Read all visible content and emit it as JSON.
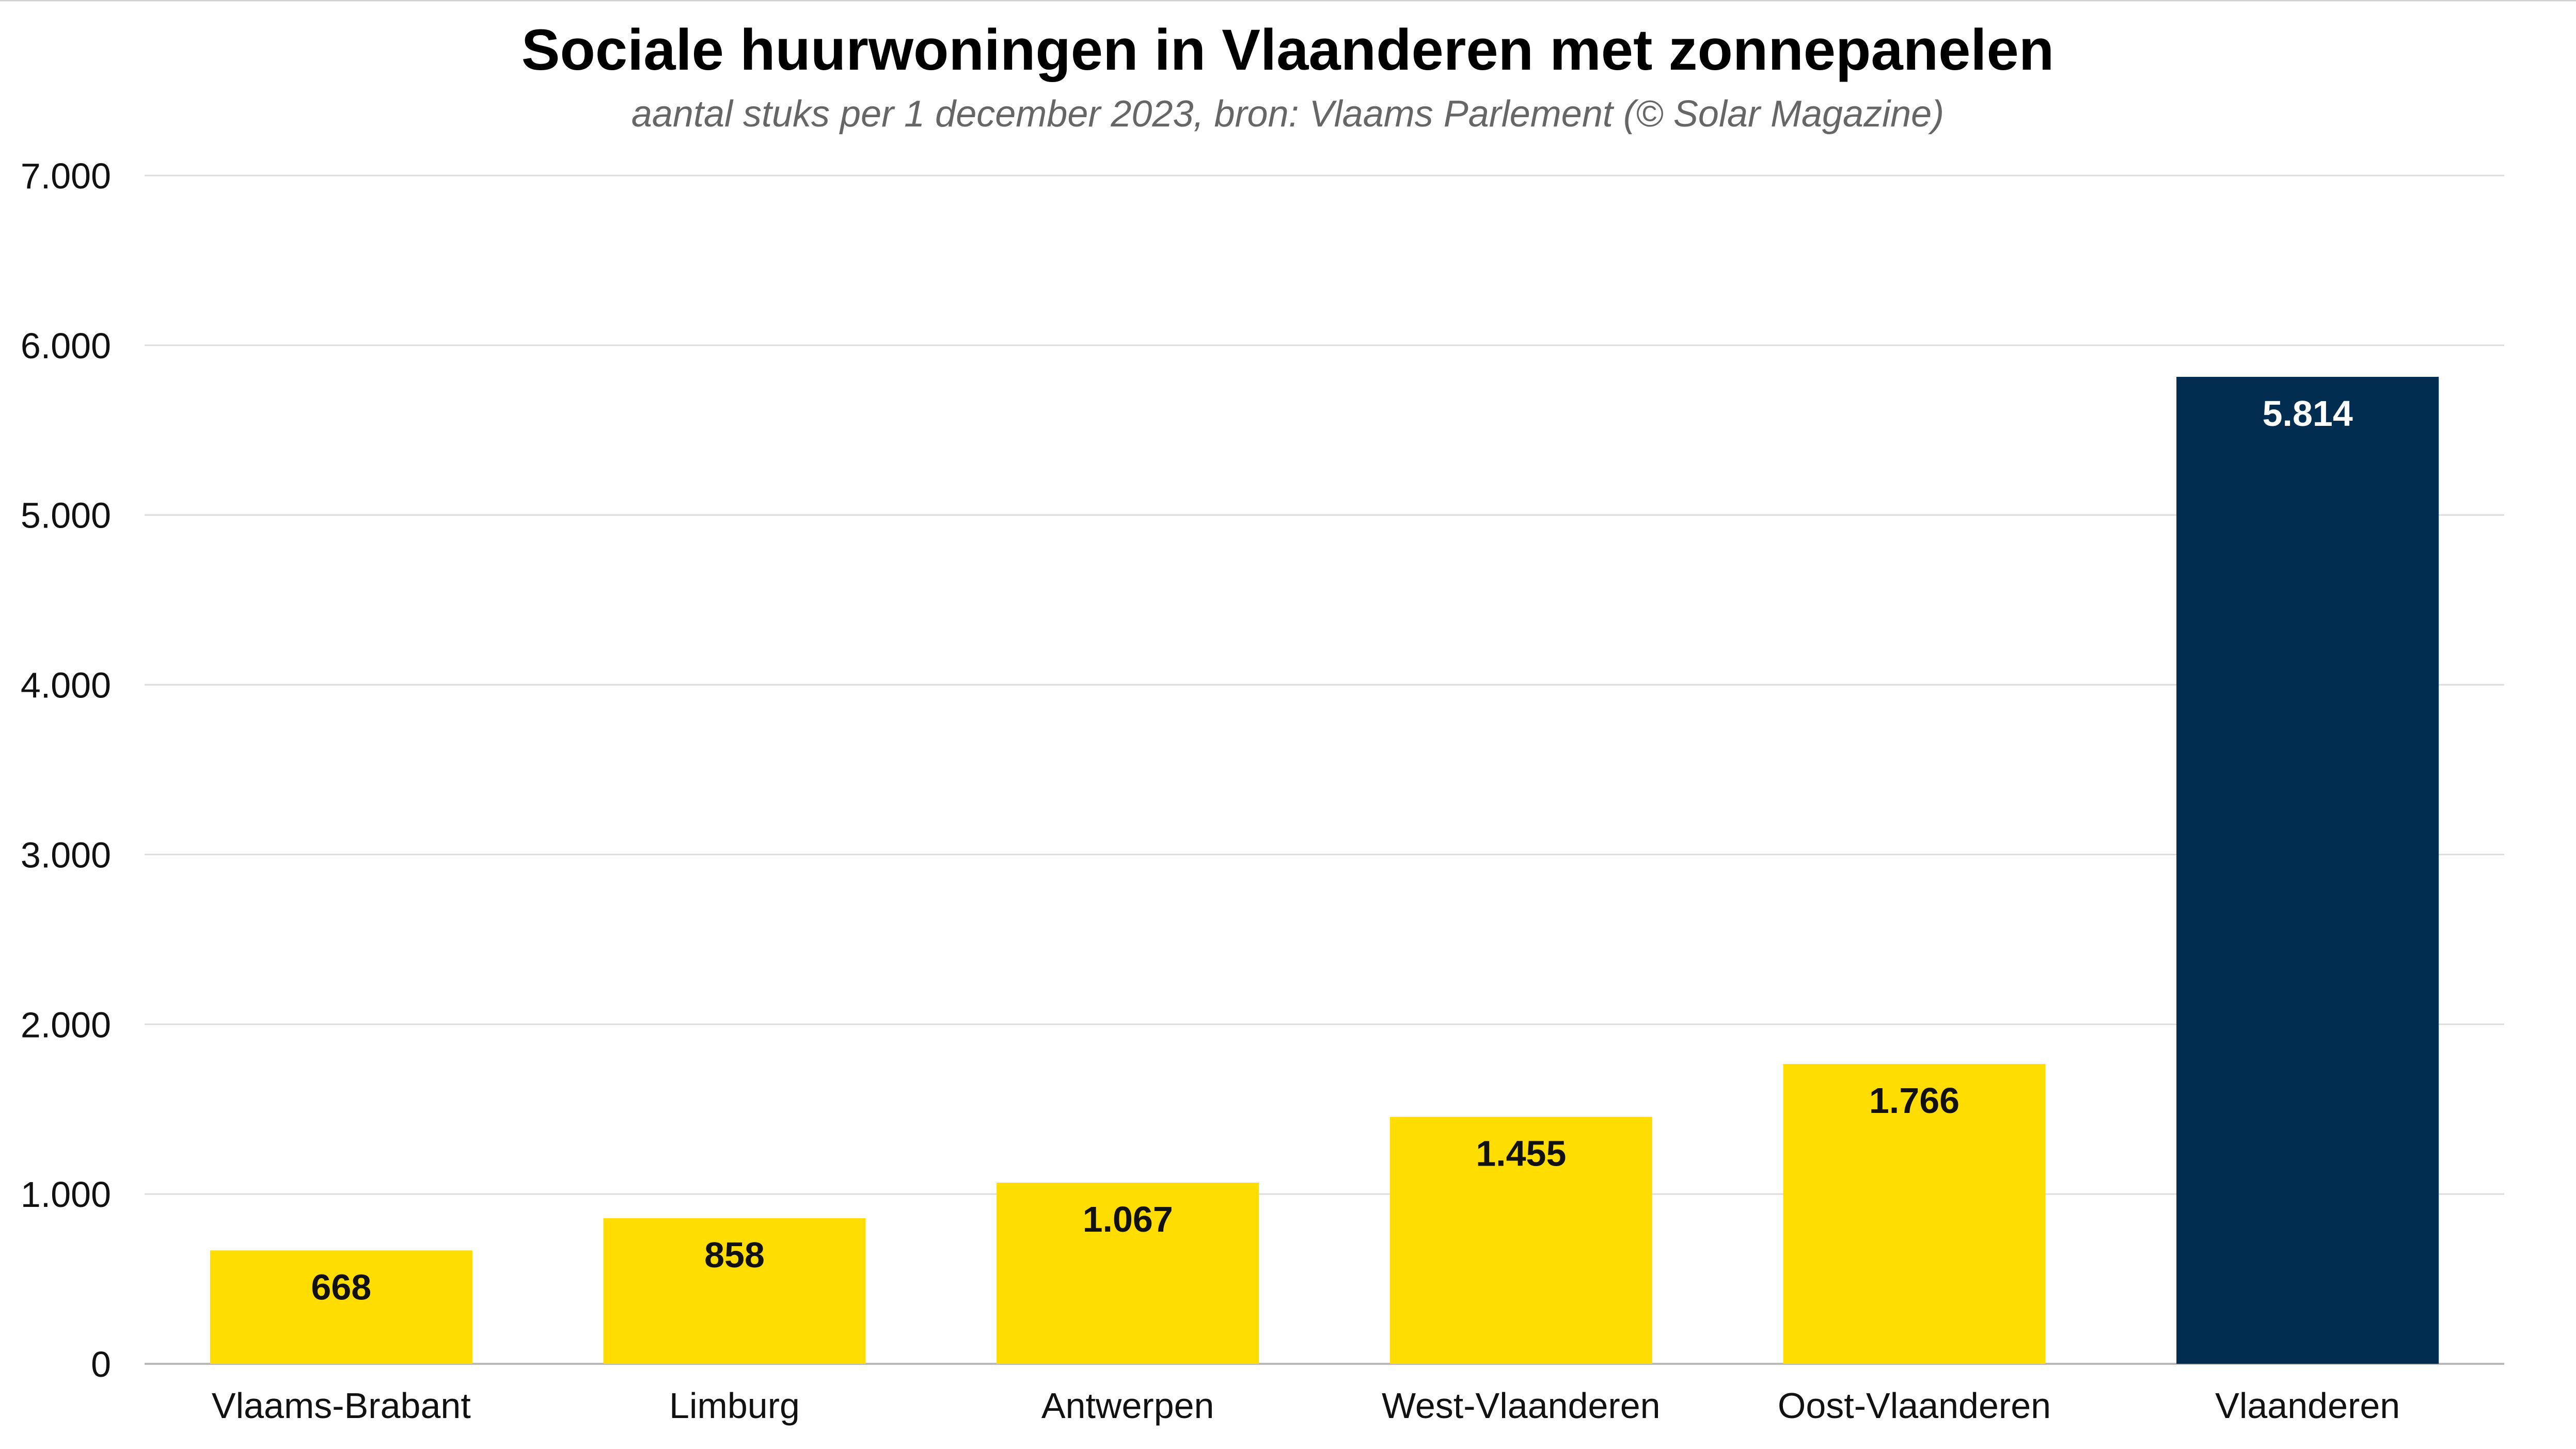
{
  "chart_data": {
    "type": "bar",
    "title": "Sociale huurwoningen in Vlaanderen met zonnepanelen",
    "subtitle": "aantal stuks per 1 december 2023, bron: Vlaams Parlement (© Solar Magazine)",
    "categories": [
      "Vlaams-Brabant",
      "Limburg",
      "Antwerpen",
      "West-Vlaanderen",
      "Oost-Vlaanderen",
      "Vlaanderen"
    ],
    "values": [
      668,
      858,
      1067,
      1455,
      1766,
      5814
    ],
    "value_labels": [
      "668",
      "858",
      "1.067",
      "1.455",
      "1.766",
      "5.814"
    ],
    "bar_colors": [
      "#FFDD00",
      "#FFDD00",
      "#FFDD00",
      "#FFDD00",
      "#FFDD00",
      "#002D50"
    ],
    "label_colors": [
      "#111111",
      "#111111",
      "#111111",
      "#111111",
      "#111111",
      "#FFFFFF"
    ],
    "ylim": [
      0,
      7000
    ],
    "yticks": [
      0,
      1000,
      2000,
      3000,
      4000,
      5000,
      6000,
      7000
    ],
    "ytick_labels": [
      "0",
      "1.000",
      "2.000",
      "3.000",
      "4.000",
      "5.000",
      "6.000",
      "7.000"
    ],
    "grid": true,
    "xlabel": "",
    "ylabel": ""
  }
}
